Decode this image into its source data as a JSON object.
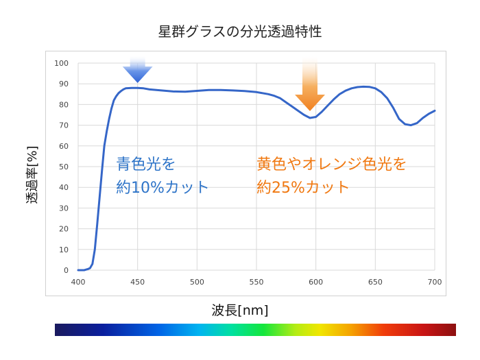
{
  "chart_data": {
    "type": "line",
    "title": "星群グラスの分光透過特性",
    "xlabel": "波長[nm]",
    "ylabel": "透過率[%]",
    "xlim": [
      400,
      700
    ],
    "ylim": [
      0,
      100
    ],
    "xticks": [
      "400",
      "450",
      "500",
      "550",
      "600",
      "650",
      "700"
    ],
    "yticks": [
      "0",
      "10",
      "20",
      "30",
      "40",
      "50",
      "60",
      "70",
      "80",
      "90",
      "100"
    ],
    "grid": true,
    "series": [
      {
        "x": [
          400,
          405,
          408,
          410,
          412,
          414,
          416,
          418,
          420,
          422,
          424,
          426,
          428,
          430,
          432,
          434,
          436,
          438,
          440,
          445,
          450,
          455,
          460,
          470,
          480,
          490,
          500,
          510,
          520,
          530,
          540,
          550,
          560,
          565,
          570,
          575,
          580,
          585,
          590,
          595,
          600,
          605,
          610,
          615,
          620,
          625,
          630,
          635,
          640,
          645,
          650,
          655,
          660,
          665,
          670,
          675,
          680,
          685,
          690,
          695,
          700
        ],
        "y": [
          0,
          0,
          0.5,
          1,
          3,
          10,
          22,
          35,
          48,
          60,
          67,
          73,
          78,
          82,
          84,
          85.5,
          86.5,
          87.3,
          87.8,
          88,
          88,
          87.8,
          87.3,
          86.8,
          86.3,
          86.2,
          86.6,
          87,
          87,
          86.8,
          86.5,
          86,
          85,
          84.2,
          83,
          81,
          79,
          77,
          75,
          73.5,
          74,
          76.5,
          79.5,
          82.5,
          85,
          86.7,
          87.8,
          88.4,
          88.6,
          88.5,
          87.8,
          86,
          83,
          78.5,
          73,
          70.5,
          70,
          71,
          73.5,
          75.5,
          77
        ]
      }
    ],
    "colors": {
      "line": "#3566c8",
      "grid": "#d9d9d9",
      "blue_arrow": "#3a6fd8",
      "orange_arrow": "#f08a24"
    },
    "annotations": [
      {
        "id": "blue",
        "x": 450,
        "line1": "青色光を",
        "line2": "約10%カット"
      },
      {
        "id": "orange",
        "x": 595,
        "line1": "黄色やオレンジ色光を",
        "line2": "約25%カット"
      }
    ]
  },
  "spectrum_bar": {
    "colors": [
      "#1a1a5e",
      "#0064e6",
      "#14e63c",
      "#f0e600",
      "#f03c0a",
      "#8c1010"
    ]
  }
}
